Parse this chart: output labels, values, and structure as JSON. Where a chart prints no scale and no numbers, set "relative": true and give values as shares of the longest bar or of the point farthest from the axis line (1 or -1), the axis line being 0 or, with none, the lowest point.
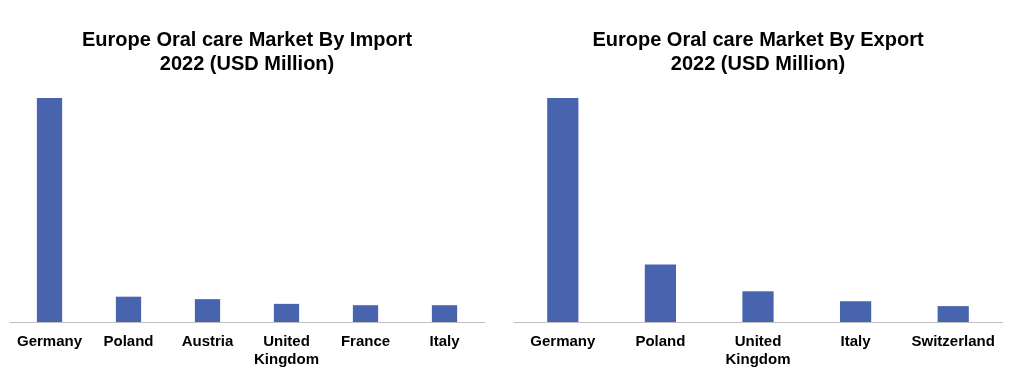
{
  "chart_data": [
    {
      "type": "bar",
      "title": "Europe Oral care Market By Import 2022 (USD Million)",
      "categories": [
        "Germany",
        "Poland",
        "Austria",
        "United Kingdom",
        "France",
        "Italy"
      ],
      "relative": true,
      "series": [
        {
          "color": "#4864ae",
          "values": [
            1,
            0.113,
            0.102,
            0.081,
            0.075,
            0.075
          ]
        }
      ],
      "legend": false,
      "grid": false
    },
    {
      "type": "bar",
      "title": "Europe Oral care Market By Export 2022 (USD Million)",
      "categories": [
        "Germany",
        "Poland",
        "United Kingdom",
        "Italy",
        "Switzerland"
      ],
      "relative": true,
      "series": [
        {
          "color": "#4864ae",
          "values": [
            1,
            0.257,
            0.137,
            0.093,
            0.071
          ]
        }
      ],
      "legend": false,
      "grid": false
    }
  ]
}
